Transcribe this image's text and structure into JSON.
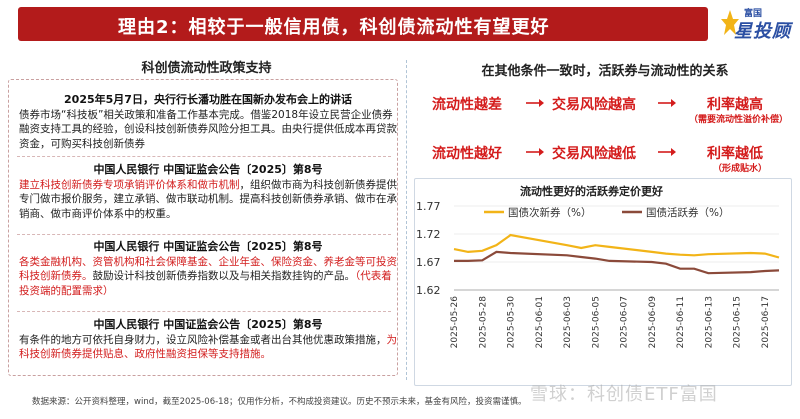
{
  "header": {
    "title": "理由2：相较于一般信用债，科创债流动性有望更好",
    "logo_small": "富国",
    "logo_big": "星投顾"
  },
  "left": {
    "title": "科创债流动性政策支持",
    "blocks": [
      {
        "head": "2025年5月7日，央行行长潘功胜在国新办发布会上的讲话",
        "body": "债券市场“科技板”相关政策和准备工作基本完成。借鉴2018年设立民营企业债券融资支持工具的经验，创设科技创新债券风险分担工具。由央行提供低成本再贷款资金，可购买科技创新债券"
      },
      {
        "head": "中国人民银行 中国证监会公告〔2025〕第8号",
        "body_red": "建立科技创新债券专项承销评价体系和做市机制",
        "body": "，组织做市商为科技创新债券提供专门做市报价服务，建立承销、做市联动机制。提高科技创新债券承销、做市在承销商、做市商评价体系中的权重。"
      },
      {
        "head": "中国人民银行 中国证监会公告〔2025〕第8号",
        "body_red": "各类金融机构、资管机构和社会保障基金、企业年金、保险资金、养老金等可投资科技创新债券。",
        "body": "鼓励设计科技创新债券指数以及与相关指数挂钩的产品。",
        "body_red2": "（代表着投资端的配置需求）"
      },
      {
        "head": "中国人民银行 中国证监会公告〔2025〕第8号",
        "body": "有条件的地方可依托自身财力，设立风险补偿基金或者出台其他优惠政策措施，",
        "body_red": "为科技创新债券提供贴息、政府性融资担保等支持措施。"
      }
    ]
  },
  "right": {
    "title": "在其他条件一致时，活跃券与流动性的关系",
    "row1": [
      "流动性越差",
      "交易风险越高",
      "利率越高"
    ],
    "row1_sub": "（需要流动性溢价补偿）",
    "row2": [
      "流动性越好",
      "交易风险越低",
      "利率越低"
    ],
    "row2_sub": "（形成贴水）"
  },
  "chart_data": {
    "type": "line",
    "title": "流动性更好的活跃券定价更好",
    "ylim": [
      1.62,
      1.77
    ],
    "yticks": [
      "1.77",
      "1.72",
      "1.67",
      "1.62"
    ],
    "x": [
      "2025-05-26",
      "2025-05-27",
      "2025-05-28",
      "2025-05-29",
      "2025-05-30",
      "2025-06-03",
      "2025-06-04",
      "2025-06-05",
      "2025-06-06",
      "2025-06-09",
      "2025-06-10",
      "2025-06-11",
      "2025-06-12",
      "2025-06-13",
      "2025-06-16",
      "2025-06-17",
      "2025-06-18"
    ],
    "xticks": [
      "2025-05-26",
      "2025-05-28",
      "2025-05-30",
      "2025-06-01",
      "2025-06-03",
      "2025-06-05",
      "2025-06-07",
      "2025-06-09",
      "2025-06-11",
      "2025-06-13",
      "2025-06-15",
      "2025-06-17"
    ],
    "series": [
      {
        "name": "国债次新券（%）",
        "color": "#f2b418",
        "values": [
          1.693,
          1.688,
          1.69,
          1.7,
          1.718,
          1.7,
          1.695,
          1.7,
          1.697,
          1.688,
          1.685,
          1.683,
          1.682,
          1.684,
          1.686,
          1.685,
          1.678
        ]
      },
      {
        "name": "国债活跃券（%）",
        "color": "#8b4a3a",
        "values": [
          1.672,
          1.672,
          1.673,
          1.688,
          1.686,
          1.682,
          1.679,
          1.676,
          1.672,
          1.67,
          1.667,
          1.658,
          1.658,
          1.65,
          1.652,
          1.654,
          1.655
        ]
      }
    ]
  },
  "footer": {
    "source": "数据来源：公开资料整理，wind，截至2025-06-18；仅用作分析，不构成投资建议。历史不预示未来，基金有风险，投资需谨慎。",
    "watermark": "雪球：科创债ETF富国"
  }
}
